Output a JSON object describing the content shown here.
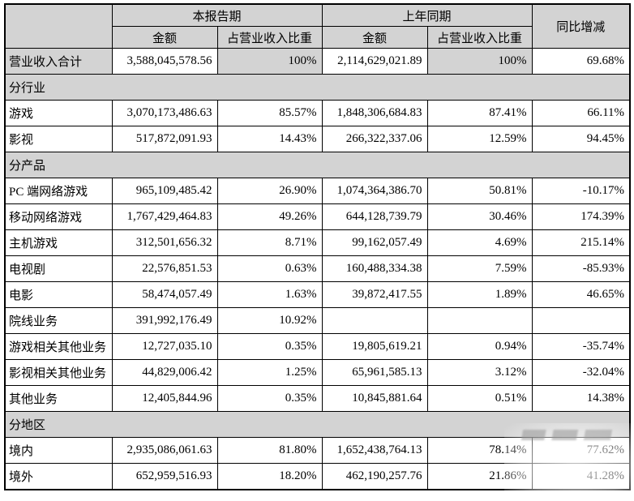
{
  "table": {
    "header": {
      "corner": "",
      "current_period": "本报告期",
      "prior_period": "上年同期",
      "yoy_change": "同比增减",
      "sub_amount": "金额",
      "sub_ratio": "占营业收入比重"
    },
    "colors": {
      "header_bg": "#d3d3d3",
      "section_bg": "#d3d3d3",
      "border": "#000000",
      "text": "#000000"
    },
    "rows": [
      {
        "type": "data",
        "highlight": true,
        "label": "营业收入合计",
        "amount_current": "3,588,045,578.56",
        "ratio_current": "100%",
        "amount_prior": "2,114,629,021.89",
        "ratio_prior": "100%",
        "yoy": "69.68%"
      },
      {
        "type": "section",
        "label": "分行业"
      },
      {
        "type": "data",
        "label": "游戏",
        "amount_current": "3,070,173,486.63",
        "ratio_current": "85.57%",
        "amount_prior": "1,848,306,684.83",
        "ratio_prior": "87.41%",
        "yoy": "66.11%"
      },
      {
        "type": "data",
        "label": "影视",
        "amount_current": "517,872,091.93",
        "ratio_current": "14.43%",
        "amount_prior": "266,322,337.06",
        "ratio_prior": "12.59%",
        "yoy": "94.45%"
      },
      {
        "type": "section",
        "label": "分产品"
      },
      {
        "type": "data",
        "label": "PC 端网络游戏",
        "amount_current": "965,109,485.42",
        "ratio_current": "26.90%",
        "amount_prior": "1,074,364,386.70",
        "ratio_prior": "50.81%",
        "yoy": "-10.17%"
      },
      {
        "type": "data",
        "label": "移动网络游戏",
        "amount_current": "1,767,429,464.83",
        "ratio_current": "49.26%",
        "amount_prior": "644,128,739.79",
        "ratio_prior": "30.46%",
        "yoy": "174.39%"
      },
      {
        "type": "data",
        "label": "主机游戏",
        "amount_current": "312,501,656.32",
        "ratio_current": "8.71%",
        "amount_prior": "99,162,057.49",
        "ratio_prior": "4.69%",
        "yoy": "215.14%"
      },
      {
        "type": "data",
        "label": "电视剧",
        "amount_current": "22,576,851.53",
        "ratio_current": "0.63%",
        "amount_prior": "160,488,334.38",
        "ratio_prior": "7.59%",
        "yoy": "-85.93%"
      },
      {
        "type": "data",
        "label": "电影",
        "amount_current": "58,474,057.49",
        "ratio_current": "1.63%",
        "amount_prior": "39,872,417.55",
        "ratio_prior": "1.89%",
        "yoy": "46.65%"
      },
      {
        "type": "data",
        "label": "院线业务",
        "amount_current": "391,992,176.49",
        "ratio_current": "10.92%",
        "amount_prior": "",
        "ratio_prior": "",
        "yoy": ""
      },
      {
        "type": "data",
        "label": "游戏相关其他业务",
        "amount_current": "12,727,035.10",
        "ratio_current": "0.35%",
        "amount_prior": "19,805,619.21",
        "ratio_prior": "0.94%",
        "yoy": "-35.74%"
      },
      {
        "type": "data",
        "label": "影视相关其他业务",
        "amount_current": "44,829,006.42",
        "ratio_current": "1.25%",
        "amount_prior": "65,961,585.13",
        "ratio_prior": "3.12%",
        "yoy": "-32.04%"
      },
      {
        "type": "data",
        "label": "其他业务",
        "amount_current": "12,405,844.96",
        "ratio_current": "0.35%",
        "amount_prior": "10,845,881.64",
        "ratio_prior": "0.51%",
        "yoy": "14.38%"
      },
      {
        "type": "section",
        "label": "分地区"
      },
      {
        "type": "data",
        "label": "境内",
        "amount_current": "2,935,086,061.63",
        "ratio_current": "81.80%",
        "amount_prior": "1,652,438,764.13",
        "ratio_prior": "78.14%",
        "yoy": "77.62%"
      },
      {
        "type": "data",
        "label": "境外",
        "amount_current": "652,959,516.93",
        "ratio_current": "18.20%",
        "amount_prior": "462,190,257.76",
        "ratio_prior": "21.86%",
        "yoy": "41.28%"
      }
    ]
  },
  "watermark": {
    "icon": "site-watermark"
  }
}
